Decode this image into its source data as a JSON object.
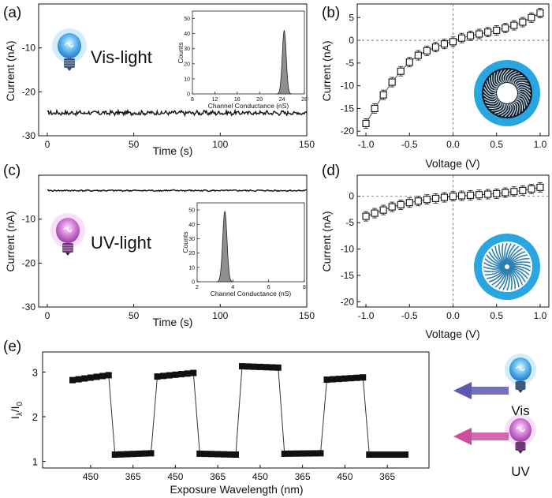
{
  "chart_data": [
    {
      "panel": "(a)",
      "type": "line",
      "xlabel": "Time (s)",
      "ylabel": "Current (nA)",
      "xlim": [
        -5,
        150
      ],
      "ylim": [
        -30,
        0
      ],
      "xticks": [
        0,
        50,
        100,
        150
      ],
      "yticks": [
        -10,
        -20,
        -30
      ],
      "label": "Vis-light",
      "series": [
        {
          "mean": -24.8,
          "noise": 0.45
        }
      ],
      "inset": {
        "type": "histogram",
        "xlabel": "Channel Conductance (nS)",
        "ylabel": "Counts",
        "xlim": [
          8,
          28
        ],
        "ylim": [
          0,
          55
        ],
        "xticks": [
          8,
          12,
          16,
          20,
          24,
          28
        ],
        "yticks": [
          0,
          10,
          20,
          30,
          40,
          50
        ],
        "peak_center": 24.4,
        "peak_width": 0.35,
        "peak_height": 42
      }
    },
    {
      "panel": "(b)",
      "type": "scatter",
      "xlabel": "Voltage (V)",
      "ylabel": "Current (nA)",
      "xlim": [
        -1.1,
        1.1
      ],
      "ylim": [
        -21,
        8
      ],
      "xticks": [
        -1.0,
        -0.5,
        0.0,
        0.5,
        1.0
      ],
      "yticks": [
        5,
        0,
        -5,
        -10,
        -15,
        -20
      ],
      "x": [
        -1.0,
        -0.9,
        -0.8,
        -0.7,
        -0.6,
        -0.5,
        -0.4,
        -0.3,
        -0.2,
        -0.1,
        0.0,
        0.1,
        0.2,
        0.3,
        0.4,
        0.5,
        0.6,
        0.7,
        0.8,
        0.9,
        1.0
      ],
      "y": [
        -18.3,
        -15.0,
        -12.0,
        -9.2,
        -6.8,
        -4.8,
        -3.3,
        -2.3,
        -1.5,
        -0.8,
        -0.3,
        0.5,
        1.0,
        1.4,
        1.8,
        2.2,
        2.7,
        3.3,
        4.0,
        5.0,
        6.0
      ]
    },
    {
      "panel": "(c)",
      "type": "line",
      "xlabel": "Time (s)",
      "ylabel": "Current (nA)",
      "xlim": [
        -5,
        150
      ],
      "ylim": [
        -30,
        0
      ],
      "xticks": [
        0,
        50,
        100,
        150
      ],
      "yticks": [
        -10,
        -20,
        -30
      ],
      "label": "UV-light",
      "series": [
        {
          "mean": -3.5,
          "noise": 0.15
        }
      ],
      "inset": {
        "type": "histogram",
        "xlabel": "Channel Conductance (nS)",
        "ylabel": "Counts",
        "xlim": [
          2,
          8
        ],
        "ylim": [
          0,
          55
        ],
        "xticks": [
          2,
          4,
          6,
          8
        ],
        "yticks": [
          0,
          10,
          20,
          30,
          40,
          50
        ],
        "peak_center": 3.55,
        "peak_width": 0.12,
        "peak_height": 49
      }
    },
    {
      "panel": "(d)",
      "type": "scatter",
      "xlabel": "Voltage (V)",
      "ylabel": "Current (nA)",
      "xlim": [
        -1.1,
        1.1
      ],
      "ylim": [
        -21,
        4
      ],
      "xticks": [
        -1.0,
        -0.5,
        0.0,
        0.5,
        1.0
      ],
      "yticks": [
        0,
        -5,
        -10,
        -15,
        -20
      ],
      "x": [
        -1.0,
        -0.9,
        -0.8,
        -0.7,
        -0.6,
        -0.5,
        -0.4,
        -0.3,
        -0.2,
        -0.1,
        0.0,
        0.1,
        0.2,
        0.3,
        0.4,
        0.5,
        0.6,
        0.7,
        0.8,
        0.9,
        1.0
      ],
      "y": [
        -3.8,
        -3.2,
        -2.6,
        -2.0,
        -1.6,
        -1.2,
        -0.9,
        -0.6,
        -0.4,
        -0.2,
        0.0,
        0.1,
        0.2,
        0.3,
        0.4,
        0.5,
        0.7,
        0.9,
        1.1,
        1.4,
        1.7
      ]
    },
    {
      "panel": "(e)",
      "type": "line",
      "xlabel": "Exposure Wavelength (nm)",
      "ylabel": "Iλ/I0",
      "ylabel_main": "I",
      "ylabel_sub": "λ",
      "ylabel_div": "/I",
      "ylabel_sub2": "0",
      "categories": [
        "450",
        "365",
        "450",
        "365",
        "450",
        "365",
        "450",
        "365"
      ],
      "ylim": [
        0.85,
        3.45
      ],
      "yticks": [
        1,
        2,
        3
      ],
      "segments": [
        {
          "level": "high",
          "y_start": 2.82,
          "y_end": 2.93
        },
        {
          "level": "low",
          "y_start": 1.15,
          "y_end": 1.18
        },
        {
          "level": "high",
          "y_start": 2.9,
          "y_end": 2.98
        },
        {
          "level": "low",
          "y_start": 1.17,
          "y_end": 1.15
        },
        {
          "level": "high",
          "y_start": 3.13,
          "y_end": 3.1
        },
        {
          "level": "low",
          "y_start": 1.17,
          "y_end": 1.18
        },
        {
          "level": "high",
          "y_start": 2.83,
          "y_end": 2.88
        },
        {
          "level": "low",
          "y_start": 1.15,
          "y_end": 1.15
        }
      ],
      "side_labels": [
        "Vis",
        "UV"
      ]
    }
  ],
  "colors": {
    "bulb_vis": "#3aa0ea",
    "bulb_uv": "#c35cc8",
    "arrow_vis": "#5d58b0",
    "arrow_uv": "#cc4e9c",
    "ring": "#29a6df",
    "hist_fill": "#8f8f8f"
  },
  "icons": {
    "bulb": "light-bulb-icon",
    "arrow": "arrow-left-icon",
    "nanochannel": "nanochannel-cross-section"
  }
}
